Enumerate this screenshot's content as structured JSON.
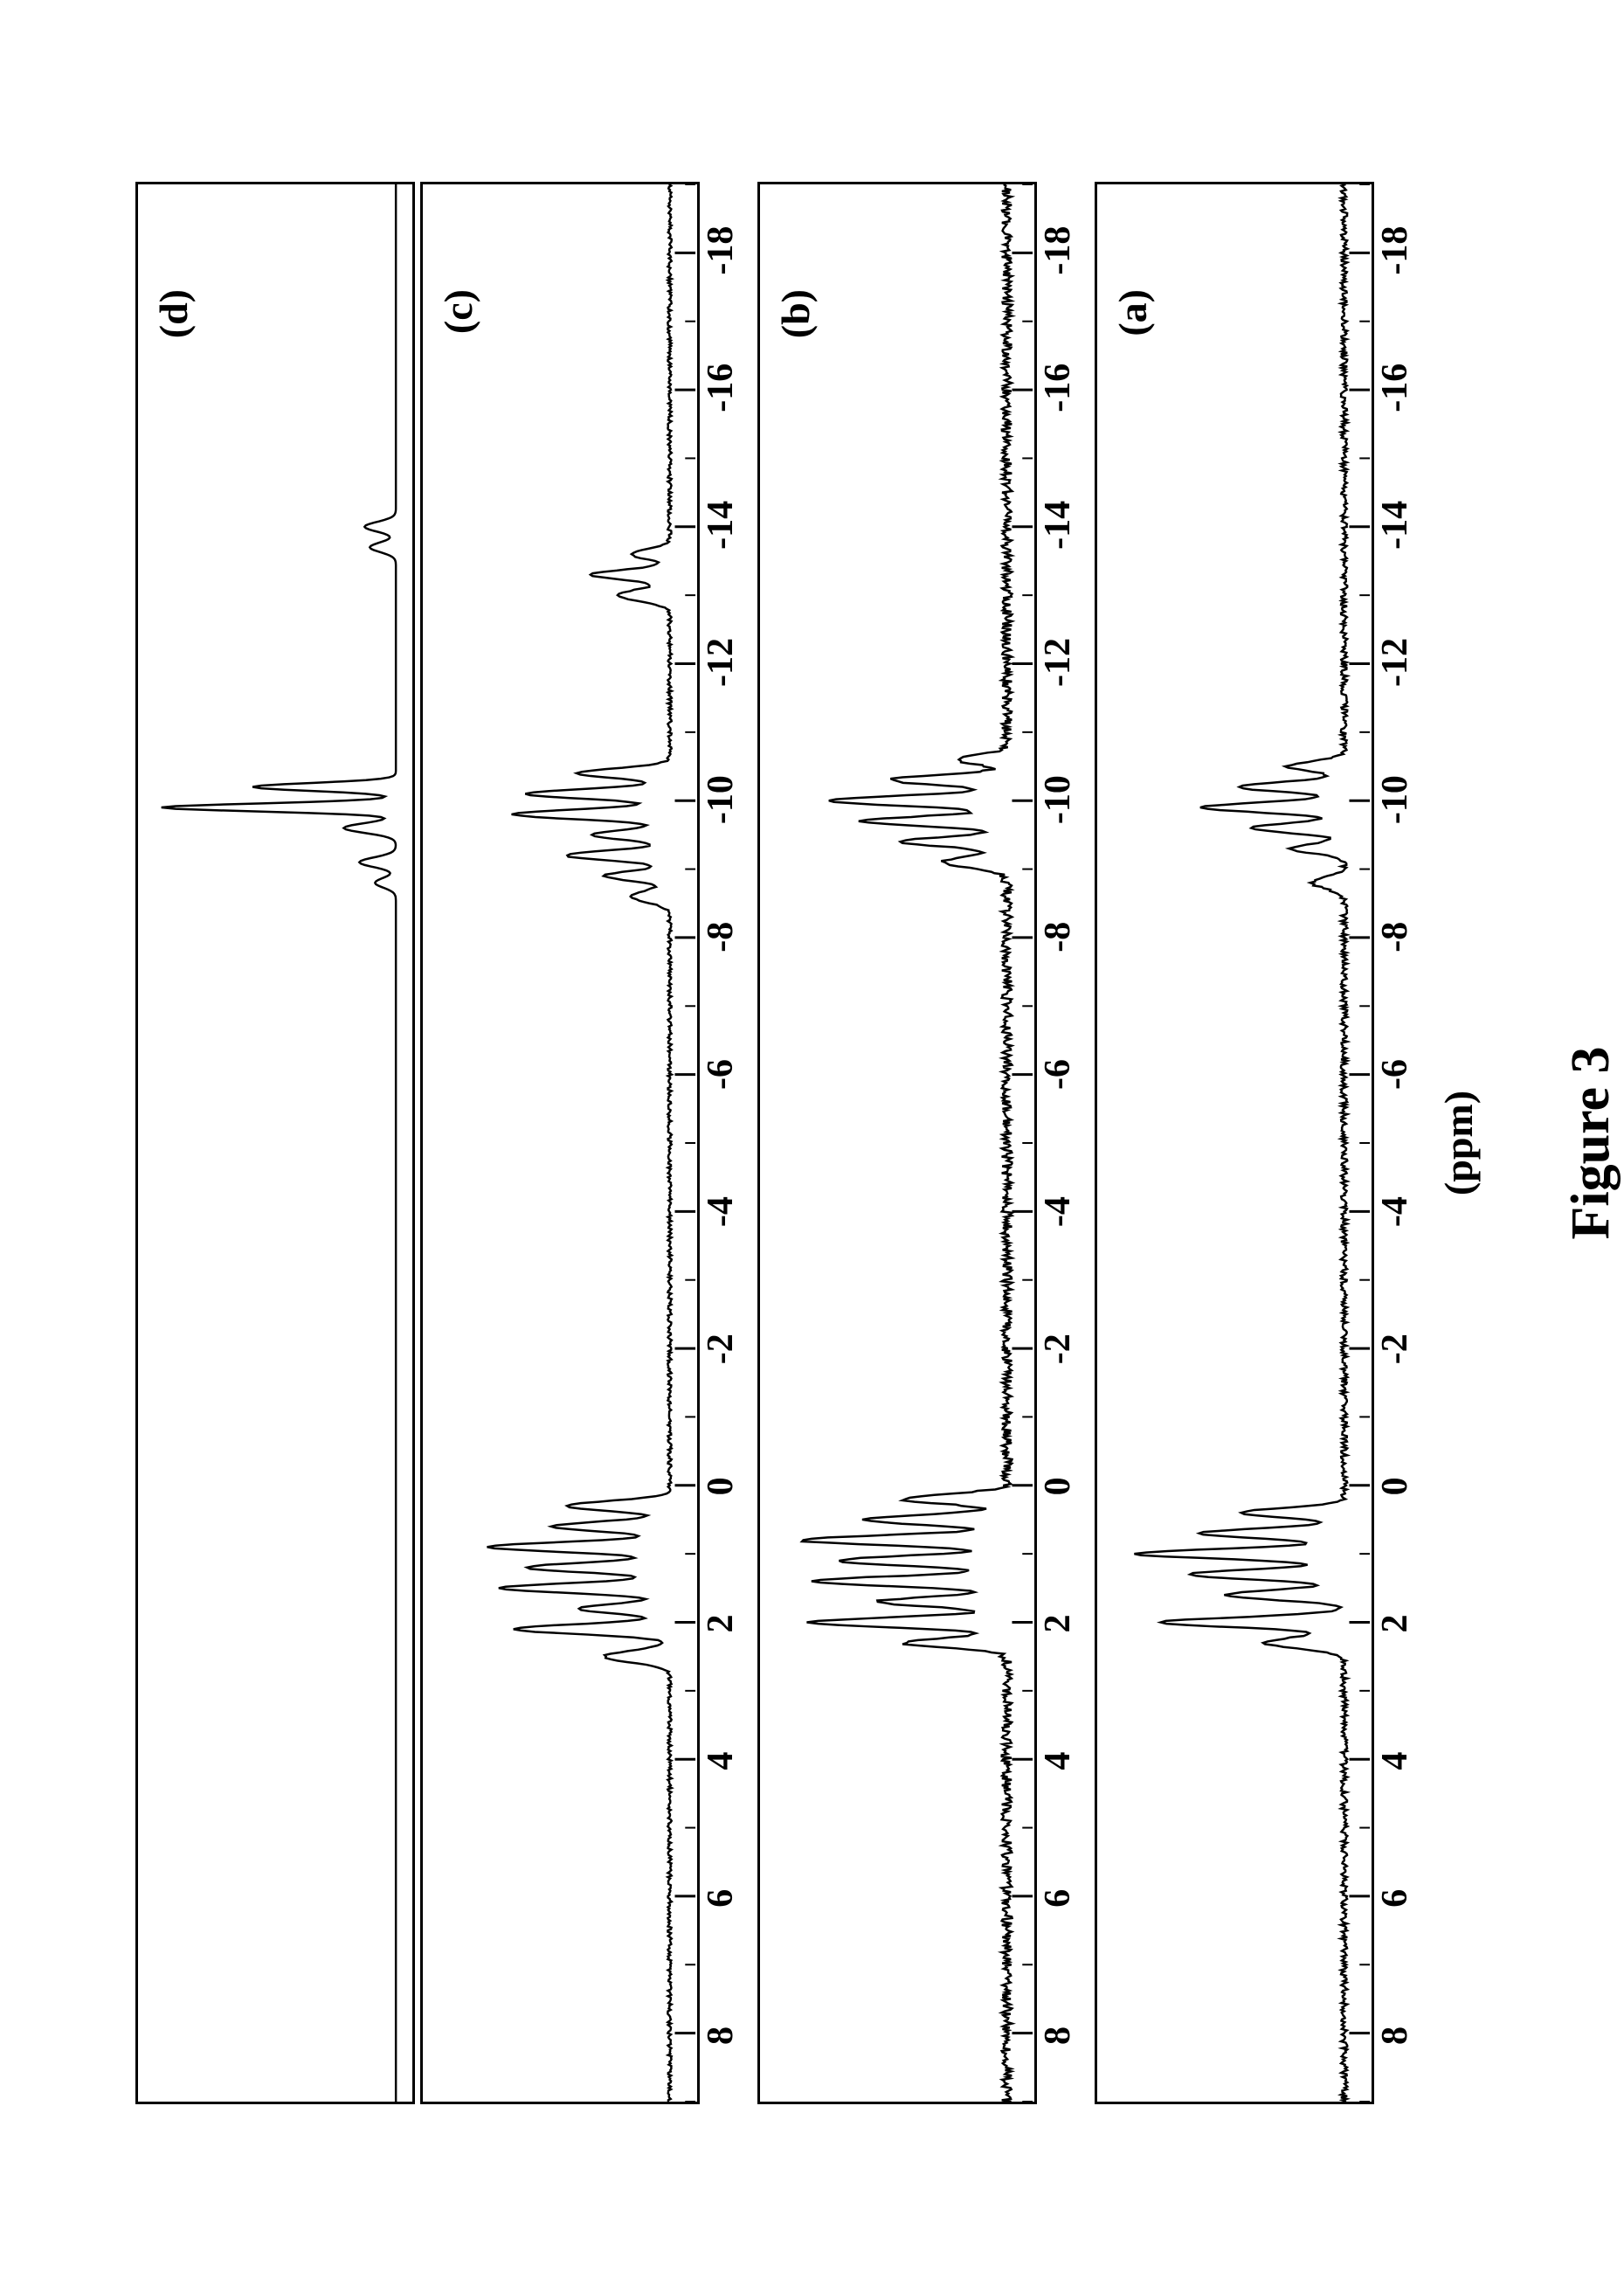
{
  "figure": {
    "caption": "Figure 3",
    "axis_label": "(ppm)",
    "colors": {
      "background": "#ffffff",
      "line": "#000000",
      "border": "#000000",
      "text": "#000000"
    },
    "stroke_width": 2.5,
    "font_family": "Times New Roman",
    "label_fontsize": 46,
    "tick_fontsize": 42,
    "caption_fontsize": 62,
    "x_axis": {
      "min": -19,
      "max": 9,
      "ticks": [
        8,
        6,
        4,
        2,
        0,
        -2,
        -4,
        -6,
        -8,
        -10,
        -12,
        -14,
        -16,
        -18
      ],
      "tick_labels": [
        "8",
        "6",
        "4",
        "2",
        "0",
        "-2",
        "-4",
        "-6",
        "-8",
        "-10",
        "-12",
        "-14",
        "-16",
        "-18"
      ]
    },
    "panels": [
      {
        "id": "d",
        "label": "(d)",
        "baseline": 0.94,
        "noise_amp": 0.0,
        "show_ticks": false,
        "peaks": [
          {
            "x": -8.8,
            "h": 0.08,
            "w": 0.1
          },
          {
            "x": -9.1,
            "h": 0.14,
            "w": 0.1
          },
          {
            "x": -9.6,
            "h": 0.2,
            "w": 0.1
          },
          {
            "x": -9.9,
            "h": 0.9,
            "w": 0.08
          },
          {
            "x": -10.2,
            "h": 0.55,
            "w": 0.08
          },
          {
            "x": -13.7,
            "h": 0.1,
            "w": 0.1
          },
          {
            "x": -14.0,
            "h": 0.12,
            "w": 0.1
          }
        ]
      },
      {
        "id": "c",
        "label": "(c)",
        "baseline": 0.9,
        "noise_amp": 0.015,
        "show_ticks": true,
        "peaks": [
          {
            "x": 2.5,
            "h": 0.25,
            "w": 0.12
          },
          {
            "x": 2.1,
            "h": 0.6,
            "w": 0.1
          },
          {
            "x": 1.8,
            "h": 0.35,
            "w": 0.1
          },
          {
            "x": 1.5,
            "h": 0.65,
            "w": 0.1
          },
          {
            "x": 1.2,
            "h": 0.55,
            "w": 0.1
          },
          {
            "x": 0.9,
            "h": 0.7,
            "w": 0.1
          },
          {
            "x": 0.6,
            "h": 0.45,
            "w": 0.1
          },
          {
            "x": 0.3,
            "h": 0.4,
            "w": 0.1
          },
          {
            "x": -8.6,
            "h": 0.15,
            "w": 0.12
          },
          {
            "x": -8.9,
            "h": 0.25,
            "w": 0.1
          },
          {
            "x": -9.2,
            "h": 0.4,
            "w": 0.1
          },
          {
            "x": -9.5,
            "h": 0.3,
            "w": 0.1
          },
          {
            "x": -9.8,
            "h": 0.6,
            "w": 0.1
          },
          {
            "x": -10.1,
            "h": 0.55,
            "w": 0.1
          },
          {
            "x": -10.4,
            "h": 0.35,
            "w": 0.1
          },
          {
            "x": -13.0,
            "h": 0.2,
            "w": 0.12
          },
          {
            "x": -13.3,
            "h": 0.3,
            "w": 0.1
          },
          {
            "x": -13.6,
            "h": 0.15,
            "w": 0.1
          }
        ]
      },
      {
        "id": "b",
        "label": "(b)",
        "baseline": 0.9,
        "noise_amp": 0.04,
        "show_ticks": true,
        "peaks": [
          {
            "x": 2.3,
            "h": 0.4,
            "w": 0.1
          },
          {
            "x": 2.0,
            "h": 0.75,
            "w": 0.1
          },
          {
            "x": 1.7,
            "h": 0.5,
            "w": 0.1
          },
          {
            "x": 1.4,
            "h": 0.75,
            "w": 0.1
          },
          {
            "x": 1.1,
            "h": 0.65,
            "w": 0.1
          },
          {
            "x": 0.8,
            "h": 0.8,
            "w": 0.1
          },
          {
            "x": 0.5,
            "h": 0.55,
            "w": 0.1
          },
          {
            "x": 0.2,
            "h": 0.4,
            "w": 0.1
          },
          {
            "x": -9.1,
            "h": 0.25,
            "w": 0.12
          },
          {
            "x": -9.4,
            "h": 0.4,
            "w": 0.1
          },
          {
            "x": -9.7,
            "h": 0.55,
            "w": 0.1
          },
          {
            "x": -10.0,
            "h": 0.7,
            "w": 0.1
          },
          {
            "x": -10.3,
            "h": 0.45,
            "w": 0.1
          },
          {
            "x": -10.6,
            "h": 0.2,
            "w": 0.1
          }
        ]
      },
      {
        "id": "a",
        "label": "(a)",
        "baseline": 0.9,
        "noise_amp": 0.025,
        "show_ticks": true,
        "peaks": [
          {
            "x": 2.3,
            "h": 0.3,
            "w": 0.12
          },
          {
            "x": 2.0,
            "h": 0.7,
            "w": 0.1
          },
          {
            "x": 1.6,
            "h": 0.45,
            "w": 0.1
          },
          {
            "x": 1.3,
            "h": 0.6,
            "w": 0.1
          },
          {
            "x": 1.0,
            "h": 0.8,
            "w": 0.1
          },
          {
            "x": 0.7,
            "h": 0.55,
            "w": 0.1
          },
          {
            "x": 0.4,
            "h": 0.4,
            "w": 0.1
          },
          {
            "x": -8.8,
            "h": 0.12,
            "w": 0.12
          },
          {
            "x": -9.3,
            "h": 0.2,
            "w": 0.1
          },
          {
            "x": -9.6,
            "h": 0.35,
            "w": 0.1
          },
          {
            "x": -9.9,
            "h": 0.55,
            "w": 0.1
          },
          {
            "x": -10.2,
            "h": 0.4,
            "w": 0.1
          },
          {
            "x": -10.5,
            "h": 0.22,
            "w": 0.1
          }
        ]
      }
    ]
  }
}
